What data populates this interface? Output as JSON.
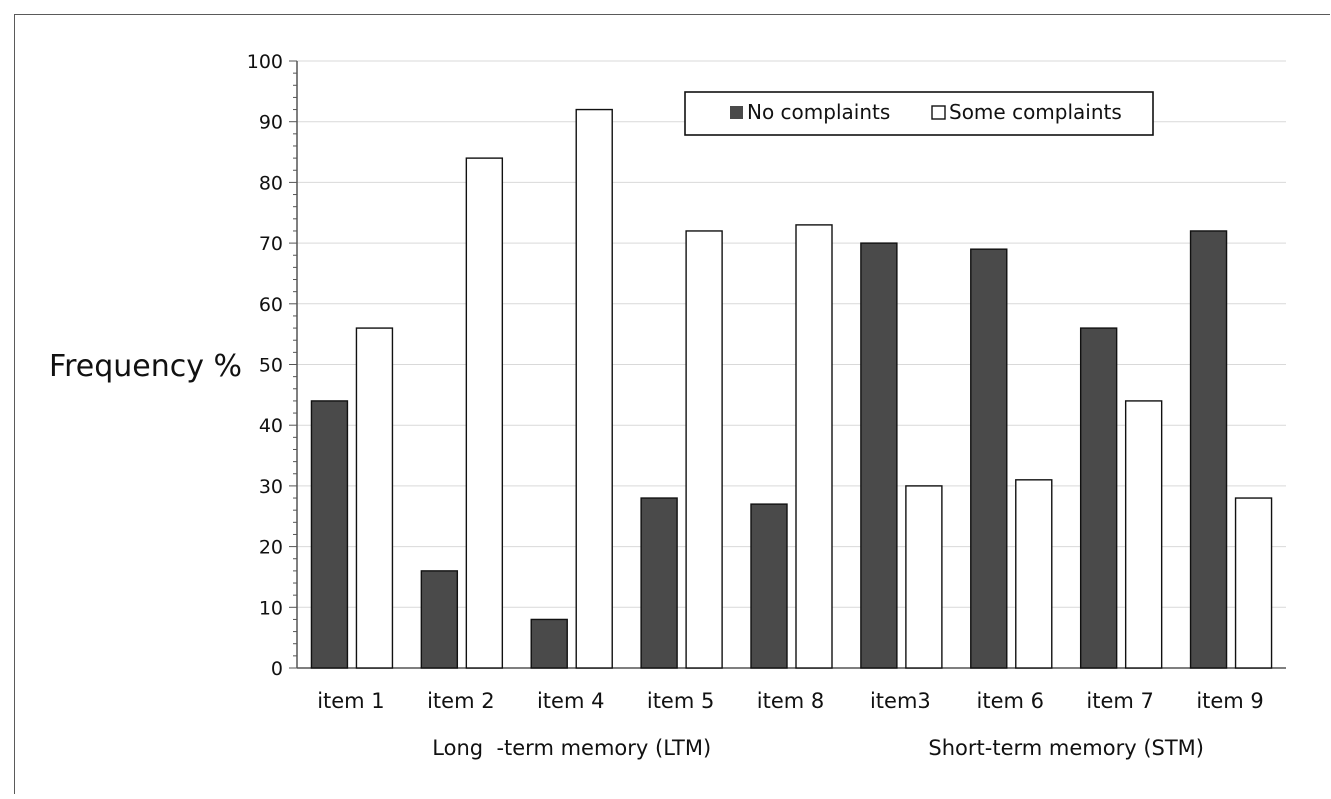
{
  "chart_data": {
    "type": "bar",
    "title": "",
    "xlabel": "",
    "ylabel": "Frequency %",
    "ylim": [
      0,
      100
    ],
    "yticks": [
      0,
      10,
      20,
      30,
      40,
      50,
      60,
      70,
      80,
      90,
      100
    ],
    "categories": [
      "item 1",
      "item 2",
      "item 4",
      "item 5",
      "item 8",
      "item3",
      "item 6",
      "item 7",
      "item 9"
    ],
    "groups": [
      {
        "label": "Long  -term memory (LTM)",
        "categories": [
          "item 1",
          "item 2",
          "item 4",
          "item 5",
          "item 8"
        ]
      },
      {
        "label": "Short-term memory (STM)",
        "categories": [
          "item3",
          "item 6",
          "item 7",
          "item 9"
        ]
      }
    ],
    "series": [
      {
        "name": "No complaints",
        "color": "#4a4a4a",
        "values": [
          44,
          16,
          8,
          28,
          27,
          70,
          69,
          56,
          72
        ]
      },
      {
        "name": "Some complaints",
        "color": "#ffffff",
        "values": [
          56,
          84,
          92,
          72,
          73,
          30,
          31,
          44,
          28
        ]
      }
    ],
    "grid": true,
    "legend_position": "top-right"
  }
}
